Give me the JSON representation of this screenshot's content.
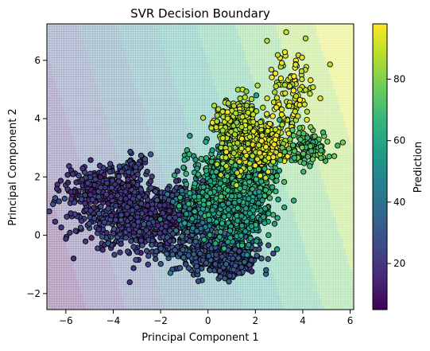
{
  "chart_data": {
    "type": "scatter",
    "title": "SVR Decision Boundary",
    "xlabel": "Principal Component 1",
    "ylabel": "Principal Component 2",
    "xlim": [
      -6.8,
      6.15
    ],
    "ylim": [
      -2.55,
      7.25
    ],
    "xticks": [
      -6,
      -4,
      -2,
      0,
      2,
      4,
      6
    ],
    "yticks": [
      -2,
      0,
      2,
      4,
      6
    ],
    "grid": false,
    "colormap": "viridis",
    "colorbar": {
      "label": "Prediction",
      "range": [
        5,
        98
      ],
      "ticks": [
        20,
        40,
        60,
        80
      ]
    },
    "background": {
      "kind": "linear decision surface (filled contours)",
      "contour_direction": [
        1.0,
        0.38
      ],
      "prediction_range": [
        5,
        98
      ],
      "levels": 10,
      "alpha": 0.3
    },
    "point_style": {
      "edgecolor": "#000000",
      "marker": "circle"
    },
    "clusters": [
      {
        "x": -2.5,
        "y": 0.6,
        "sx": 1.4,
        "sy": 0.55,
        "n": 900,
        "pred": 22
      },
      {
        "x": -4.5,
        "y": 1.6,
        "sx": 0.8,
        "sy": 0.35,
        "n": 250,
        "pred": 20
      },
      {
        "x": 0.3,
        "y": -0.6,
        "sx": 0.9,
        "sy": 0.35,
        "n": 450,
        "pred": 30
      },
      {
        "x": 1.0,
        "y": -1.0,
        "sx": 0.35,
        "sy": 0.2,
        "n": 150,
        "pred": 28
      },
      {
        "x": -0.3,
        "y": 0.9,
        "sx": 0.6,
        "sy": 0.4,
        "n": 200,
        "pred": 42
      },
      {
        "x": 0.7,
        "y": 1.8,
        "sx": 0.7,
        "sy": 0.7,
        "n": 500,
        "pred": 62
      },
      {
        "x": 1.8,
        "y": 2.0,
        "sx": 0.6,
        "sy": 0.6,
        "n": 300,
        "pred": 66
      },
      {
        "x": 1.5,
        "y": 0.6,
        "sx": 0.5,
        "sy": 0.5,
        "n": 200,
        "pred": 58
      },
      {
        "x": 1.3,
        "y": 3.5,
        "sx": 0.5,
        "sy": 0.6,
        "n": 350,
        "pred": 88
      },
      {
        "x": 2.5,
        "y": 3.1,
        "sx": 0.45,
        "sy": 0.3,
        "n": 250,
        "pred": 93
      },
      {
        "x": 3.5,
        "y": 4.9,
        "sx": 0.5,
        "sy": 0.8,
        "n": 120,
        "pred": 92
      },
      {
        "x": 4.2,
        "y": 3.0,
        "sx": 0.5,
        "sy": 0.3,
        "n": 120,
        "pred": 72
      },
      {
        "x": -3.2,
        "y": 2.3,
        "sx": 0.4,
        "sy": 0.25,
        "n": 60,
        "pred": 24
      }
    ]
  }
}
